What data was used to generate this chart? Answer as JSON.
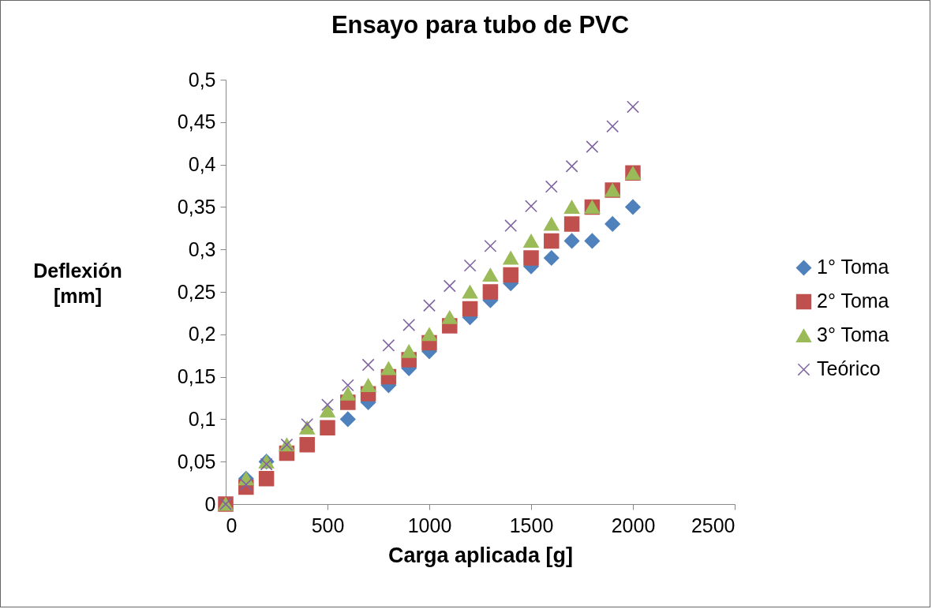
{
  "chart_data": {
    "type": "scatter",
    "title": "Ensayo para tubo de PVC",
    "xlabel": "Carga aplicada [g]",
    "ylabel": "Deflexión [mm]",
    "x": [
      0,
      100,
      200,
      300,
      400,
      500,
      600,
      700,
      800,
      900,
      1000,
      1100,
      1200,
      1300,
      1400,
      1500,
      1600,
      1700,
      1800,
      1900,
      2000
    ],
    "series": [
      {
        "name": "1° Toma",
        "color": "#4f81bd",
        "marker": "diamond",
        "values": [
          null,
          0.03,
          0.05,
          null,
          null,
          null,
          0.1,
          0.12,
          0.14,
          0.16,
          0.18,
          null,
          0.22,
          0.24,
          0.26,
          0.28,
          0.29,
          0.31,
          0.31,
          0.33,
          0.35
        ]
      },
      {
        "name": "2° Toma",
        "color": "#c0504d",
        "marker": "square",
        "values": [
          0,
          0.02,
          0.03,
          0.06,
          0.07,
          0.09,
          0.12,
          0.13,
          0.15,
          0.17,
          0.19,
          0.21,
          0.23,
          0.25,
          0.27,
          0.29,
          0.31,
          0.33,
          0.35,
          0.37,
          0.39
        ]
      },
      {
        "name": "3° Toma",
        "color": "#9bbb59",
        "marker": "triangle",
        "values": [
          0,
          0.03,
          0.05,
          0.07,
          0.09,
          0.11,
          0.13,
          0.14,
          0.16,
          0.18,
          0.2,
          0.22,
          0.25,
          0.27,
          0.29,
          0.31,
          0.33,
          0.35,
          0.35,
          0.37,
          0.39
        ]
      },
      {
        "name": "Teórico",
        "color": "#8064a2",
        "marker": "cross",
        "values": [
          0,
          0.023,
          0.047,
          0.07,
          0.094,
          0.117,
          0.14,
          0.164,
          0.187,
          0.211,
          0.234,
          0.257,
          0.281,
          0.304,
          0.328,
          0.351,
          0.374,
          0.398,
          0.421,
          0.445,
          0.468
        ]
      }
    ],
    "xlim": [
      0,
      2500
    ],
    "xticks": [
      0,
      500,
      1000,
      1500,
      2000,
      2500
    ],
    "ylim": [
      0,
      0.5
    ],
    "yticks": [
      0,
      {
        "value": 0.05,
        "label": "0,05"
      },
      {
        "value": 0.1,
        "label": "0,1"
      },
      {
        "value": 0.15,
        "label": "0,15"
      },
      {
        "value": 0.2,
        "label": "0,2"
      },
      {
        "value": 0.25,
        "label": "0,25"
      },
      {
        "value": 0.3,
        "label": "0,3"
      },
      {
        "value": 0.35,
        "label": "0,35"
      },
      {
        "value": 0.4,
        "label": "0,4"
      },
      {
        "value": 0.45,
        "label": "0,45"
      },
      {
        "value": 0.5,
        "label": "0,5"
      }
    ],
    "grid": false,
    "legend": "right"
  }
}
